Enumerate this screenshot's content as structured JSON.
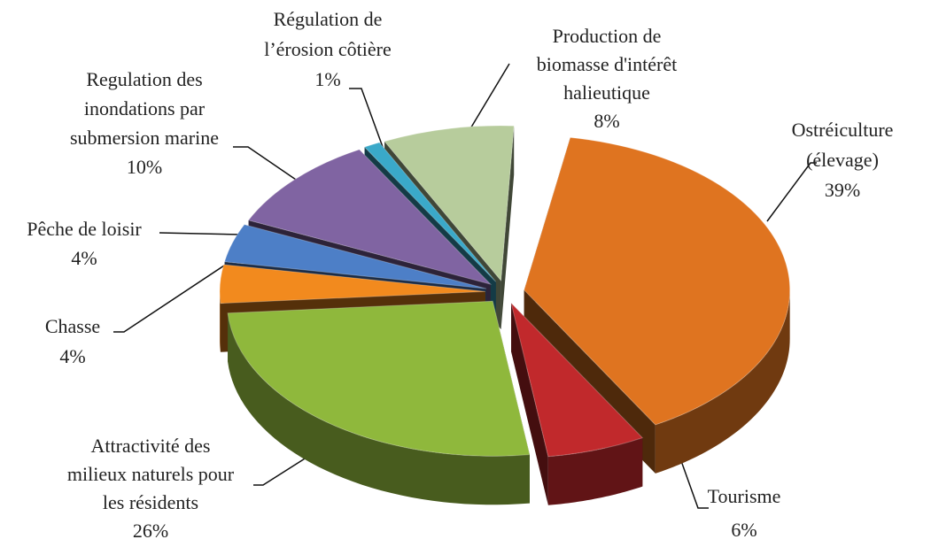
{
  "chart_data": {
    "type": "pie",
    "categories": [
      "Ostréiculture\n(élevage)",
      "Tourisme",
      "Attractivité des\nmilieux naturels pour\nles résidents",
      "Chasse",
      "Pêche de loisir",
      "Regulation des\ninondations par\nsubmersion marine",
      "Régulation de\nl’érosion côtière",
      "Production de\nbiomasse d'intérêt\nhalieutique"
    ],
    "values": [
      39,
      6,
      26,
      4,
      4,
      10,
      1,
      8
    ],
    "value_labels": [
      "39%",
      "6%",
      "26%",
      "4%",
      "4%",
      "10%",
      "1%",
      "8%"
    ],
    "colors": [
      "#df7420",
      "#c1292c",
      "#8fb83c",
      "#f28a1e",
      "#4d7fc7",
      "#8064a2",
      "#3aa9c9",
      "#b7cc9c"
    ]
  }
}
